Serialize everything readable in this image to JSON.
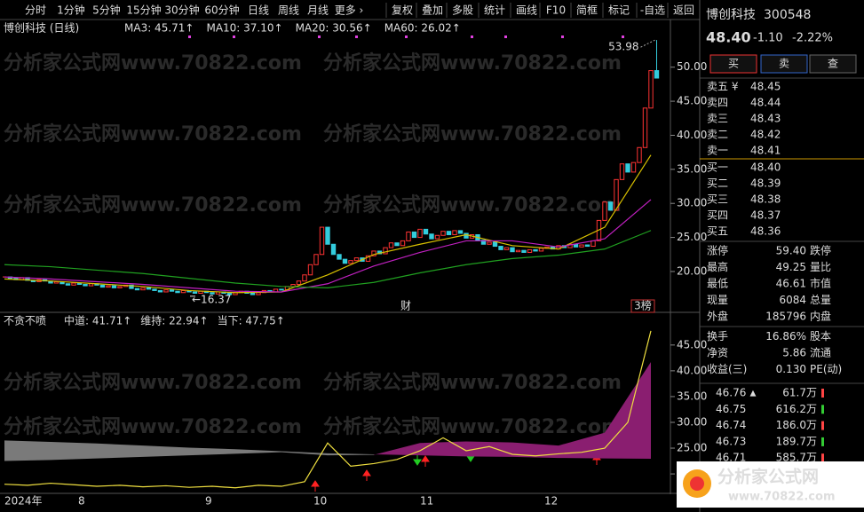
{
  "toolbar": {
    "periods": [
      "分时",
      "1分钟",
      "5分钟",
      "15分钟",
      "30分钟",
      "60分钟",
      "日线",
      "周线",
      "月线",
      "更多 ›"
    ],
    "tools": [
      "复权",
      "叠加",
      "多股",
      "统计",
      "画线",
      "F10",
      "简框",
      "标记",
      "-自选",
      "返回"
    ]
  },
  "watermark": "分析家公式网www.70822.com",
  "chart": {
    "title": "博创科技 (日线)",
    "ma_labels": [
      {
        "label": "MA3: 45.71↑",
        "color": "#e6e6e6"
      },
      {
        "label": "MA10: 37.10↑",
        "color": "#e8c840"
      },
      {
        "label": "MA20: 30.56↑",
        "color": "#e040e0"
      },
      {
        "label": "MA60: 26.02↑",
        "color": "#40c040"
      }
    ],
    "ylim": [
      14,
      57
    ],
    "yticks": [
      {
        "value": 50,
        "label": "50.00"
      },
      {
        "value": 45,
        "label": "45.00"
      },
      {
        "value": 40,
        "label": "40.00"
      },
      {
        "value": 35,
        "label": "35.00"
      },
      {
        "value": 30,
        "label": "30.00"
      },
      {
        "value": 25,
        "label": "25.00"
      },
      {
        "value": 20,
        "label": "20.00"
      }
    ],
    "closes": [
      19.2,
      19.0,
      18.8,
      19.1,
      18.7,
      18.5,
      18.8,
      18.6,
      18.3,
      18.5,
      18.2,
      18.0,
      18.3,
      18.1,
      17.9,
      18.2,
      18.0,
      17.7,
      17.9,
      17.6,
      17.8,
      18.0,
      17.5,
      17.3,
      17.6,
      17.4,
      17.2,
      17.0,
      17.3,
      17.1,
      16.9,
      17.2,
      17.0,
      16.8,
      17.1,
      16.9,
      16.7,
      17.0,
      16.8,
      16.6,
      16.9,
      17.1,
      16.8,
      16.6,
      16.9,
      17.2,
      17.0,
      17.4,
      17.3,
      17.8,
      18.1,
      18.6,
      19.5,
      21.0,
      22.5,
      26.5,
      24.0,
      22.5,
      21.8,
      21.2,
      21.6,
      22.0,
      21.5,
      22.3,
      23.0,
      22.6,
      23.5,
      24.2,
      23.8,
      24.5,
      25.8,
      25.0,
      26.2,
      25.5,
      24.8,
      25.3,
      25.9,
      25.4,
      26.0,
      25.6,
      24.9,
      25.4,
      24.6,
      24.0,
      24.3,
      23.7,
      23.2,
      23.5,
      22.9,
      23.1,
      22.8,
      23.2,
      23.0,
      23.4,
      23.6,
      23.3,
      23.8,
      23.5,
      24.0,
      23.6,
      23.9,
      23.7,
      24.5,
      27.5,
      30.2,
      29.0,
      33.5,
      35.8,
      34.6,
      36.0,
      38.2,
      44.0,
      49.5,
      48.4
    ],
    "ma_x": [
      0,
      8,
      16,
      24,
      32,
      40,
      48,
      56,
      64,
      72,
      80,
      88,
      96,
      104,
      112
    ],
    "ma_series": [
      {
        "name": "MA10",
        "color": "#d8c000",
        "values": [
          18.9,
          18.6,
          18.2,
          17.8,
          17.2,
          16.9,
          17.0,
          19.5,
          22.5,
          24.0,
          25.4,
          23.8,
          23.3,
          26.5,
          37.1
        ]
      },
      {
        "name": "MA20",
        "color": "#c020c0",
        "values": [
          19.2,
          18.9,
          18.5,
          18.1,
          17.6,
          17.1,
          17.0,
          18.2,
          20.8,
          22.8,
          24.5,
          24.5,
          23.6,
          24.8,
          30.56
        ]
      },
      {
        "name": "MA60",
        "color": "#20a020",
        "values": [
          21.0,
          20.7,
          20.2,
          19.7,
          19.0,
          18.3,
          17.8,
          17.6,
          18.4,
          19.8,
          21.0,
          21.9,
          22.4,
          23.3,
          26.02
        ]
      }
    ],
    "high": 53.98,
    "low": 16.37,
    "low_label": "←16.37",
    "notes": [
      "财",
      "3榜"
    ]
  },
  "indicator": {
    "name": "不贪不喷",
    "labels": [
      {
        "label": "中道: 41.71↑",
        "color": "#e8e040"
      },
      {
        "label": "维持: 22.94↑",
        "color": "#40d0f0"
      },
      {
        "label": "当下: 47.75↑",
        "color": "#e8e040"
      }
    ],
    "ylim": [
      16.4,
      49.1
    ],
    "yticks": [
      {
        "value": 45,
        "label": "45.00"
      },
      {
        "value": 40,
        "label": "40.00"
      },
      {
        "value": 35,
        "label": "35.00"
      },
      {
        "value": 30,
        "label": "30.00"
      },
      {
        "value": 25,
        "label": "25.00"
      },
      {
        "value": 20,
        "label": "20.00"
      }
    ],
    "band_x": [
      0,
      8,
      16,
      24,
      32,
      40,
      48,
      56,
      64,
      72,
      80,
      88,
      96,
      104,
      112
    ],
    "zhongdao": [
      22.5,
      22.7,
      23.0,
      23.3,
      23.6,
      23.9,
      24.2,
      23.6,
      23.7,
      26.0,
      26.3,
      26.1,
      25.5,
      28.0,
      41.71
    ],
    "weichi": [
      26.5,
      26.2,
      25.9,
      25.5,
      25.1,
      24.8,
      24.4,
      24.0,
      23.8,
      23.6,
      23.4,
      23.3,
      23.1,
      23.0,
      22.94
    ],
    "line_x": [
      0,
      4,
      8,
      12,
      16,
      20,
      24,
      28,
      32,
      36,
      40,
      44,
      48,
      52,
      56,
      60,
      64,
      68,
      72,
      76,
      80,
      84,
      88,
      92,
      96,
      100,
      104,
      108,
      112
    ],
    "dangxia": [
      18.0,
      17.8,
      18.2,
      17.9,
      17.6,
      17.8,
      17.5,
      17.7,
      17.4,
      17.6,
      17.3,
      17.8,
      17.6,
      18.5,
      26.0,
      21.5,
      22.0,
      22.8,
      24.5,
      27.0,
      24.5,
      25.3,
      23.8,
      23.5,
      23.9,
      24.2,
      25.0,
      30.0,
      47.75
    ]
  },
  "dates": [
    "2024年",
    "8",
    "9",
    "10",
    "11",
    "12"
  ],
  "quote": {
    "name": "博创科技",
    "code": "300548",
    "price": "48.40",
    "change": "-1.10",
    "pct": "-2.22%",
    "buttons": [
      "买",
      "卖",
      "查"
    ],
    "asks": [
      [
        "卖五 ¥",
        "48.45"
      ],
      [
        "卖四",
        "48.44"
      ],
      [
        "卖三",
        "48.43"
      ],
      [
        "卖二",
        "48.42"
      ],
      [
        "卖一",
        "48.41"
      ]
    ],
    "bids": [
      [
        "买一",
        "48.40"
      ],
      [
        "买二",
        "48.39"
      ],
      [
        "买三",
        "48.38"
      ],
      [
        "买四",
        "48.37"
      ],
      [
        "买五",
        "48.36"
      ]
    ],
    "stats": [
      [
        "涨停",
        "59.40",
        "跌停"
      ],
      [
        "最高",
        "49.25",
        "量比"
      ],
      [
        "最低",
        "46.61",
        "市值"
      ],
      [
        "现量",
        "6084",
        "总量"
      ],
      [
        "外盘",
        "185796",
        "内盘"
      ],
      [
        "换手",
        "16.86%",
        "股本"
      ],
      [
        "净资",
        "5.86",
        "流通"
      ],
      [
        "收益(三)",
        "0.130",
        "PE(动)"
      ]
    ],
    "ticks": [
      [
        "46.76",
        "▲",
        "61.7万"
      ],
      [
        "46.75",
        "616.2万"
      ],
      [
        "46.74",
        "186.0万"
      ],
      [
        "46.73",
        "189.7万"
      ],
      [
        "46.71",
        "585.7万"
      ]
    ]
  },
  "logo": {
    "name": "分析家公式网",
    "url": "www.70822.com"
  }
}
